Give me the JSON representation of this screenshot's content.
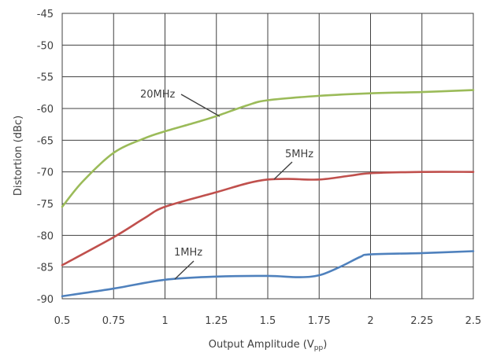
{
  "chart_data": {
    "type": "line",
    "xlabel": "Output Amplitude (V",
    "xlabel_sub": "pp",
    "xlabel_close": ")",
    "ylabel": "Distortion (dBc)",
    "xlim": [
      0.5,
      2.5
    ],
    "ylim": [
      -90,
      -45
    ],
    "x_ticks": [
      "0.5",
      "0.75",
      "1",
      "1.25",
      "1.5",
      "1.75",
      "2",
      "2.25",
      "2.5"
    ],
    "y_ticks": [
      "-45",
      "-50",
      "-55",
      "-60",
      "-65",
      "-70",
      "-75",
      "-80",
      "-85",
      "-90"
    ],
    "grid": true,
    "series": [
      {
        "name": "20MHz",
        "color": "#9bbb59",
        "x": [
          0.5,
          0.6,
          0.75,
          0.9,
          1.0,
          1.15,
          1.25,
          1.4,
          1.5,
          1.75,
          2.0,
          2.25,
          2.5
        ],
        "y": [
          -75.5,
          -71.5,
          -67.0,
          -64.7,
          -63.6,
          -62.2,
          -61.2,
          -59.5,
          -58.7,
          -58.0,
          -57.6,
          -57.4,
          -57.1
        ]
      },
      {
        "name": "5MHz",
        "color": "#c0504d",
        "x": [
          0.5,
          0.75,
          0.9,
          1.0,
          1.25,
          1.4,
          1.5,
          1.6,
          1.75,
          1.9,
          2.0,
          2.25,
          2.5
        ],
        "y": [
          -84.7,
          -80.3,
          -77.3,
          -75.5,
          -73.2,
          -71.8,
          -71.2,
          -71.1,
          -71.2,
          -70.6,
          -70.2,
          -70.0,
          -70.0
        ]
      },
      {
        "name": "1MHz",
        "color": "#4f81bd",
        "x": [
          0.5,
          0.75,
          1.0,
          1.25,
          1.5,
          1.65,
          1.75,
          1.85,
          1.95,
          2.0,
          2.25,
          2.5
        ],
        "y": [
          -89.6,
          -88.4,
          -87.0,
          -86.5,
          -86.4,
          -86.6,
          -86.3,
          -85.0,
          -83.4,
          -83.0,
          -82.8,
          -82.5
        ]
      }
    ],
    "annotations": [
      {
        "text": "20MHz",
        "series": "20MHz"
      },
      {
        "text": "5MHz",
        "series": "5MHz"
      },
      {
        "text": "1MHz",
        "series": "1MHz"
      }
    ]
  }
}
